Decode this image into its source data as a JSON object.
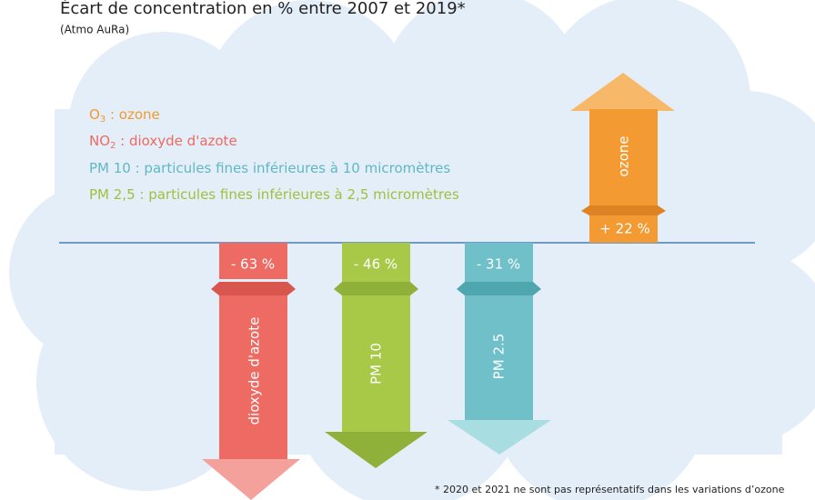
{
  "title": "Écart de concentration en % entre 2007 et 2019*",
  "source": "(Atmo AuRa)",
  "legend": [
    {
      "formula": "O",
      "sub": "3",
      "text": " : ozone"
    },
    {
      "formula": "NO",
      "sub": "2",
      "text": " : dioxyde d'azote"
    },
    {
      "formula": "PM 10",
      "text": " : particules fines inférieures à 10 micromètres"
    },
    {
      "formula": "PM 2,5",
      "text": " : particules fines inférieures à 2,5 micromètres"
    }
  ],
  "arrows": [
    {
      "name": "dioxyde d'azote",
      "value_label": "- 63 %"
    },
    {
      "name": "PM 10",
      "value_label": "- 46 %"
    },
    {
      "name": "PM 2.5",
      "value_label": "- 31 %"
    },
    {
      "name": "ozone",
      "value_label": "+ 22 %"
    }
  ],
  "footnote": "* 2020 et 2021 ne sont pas représentatifs dans les variations d’ozone"
}
